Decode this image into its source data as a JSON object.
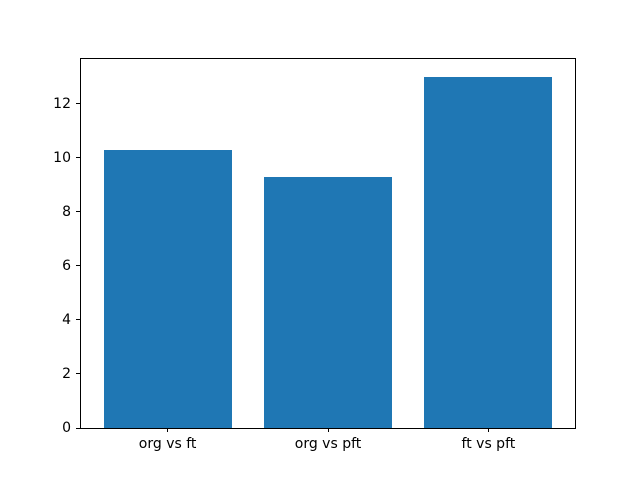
{
  "chart_data": {
    "type": "bar",
    "categories": [
      "org vs ft",
      "org vs pft",
      "ft vs pft"
    ],
    "values": [
      10.3,
      9.3,
      13.0
    ],
    "title": "",
    "xlabel": "",
    "ylabel": "",
    "ylim": [
      0,
      13.65
    ],
    "xlim": [
      -0.54,
      2.54
    ],
    "yticks": [
      0,
      2,
      4,
      6,
      8,
      10,
      12
    ],
    "bar_width": 0.8,
    "bar_color": "#1f77b4",
    "spine_color": "#000000",
    "background_color": "#ffffff",
    "grid": false,
    "legend": null
  }
}
